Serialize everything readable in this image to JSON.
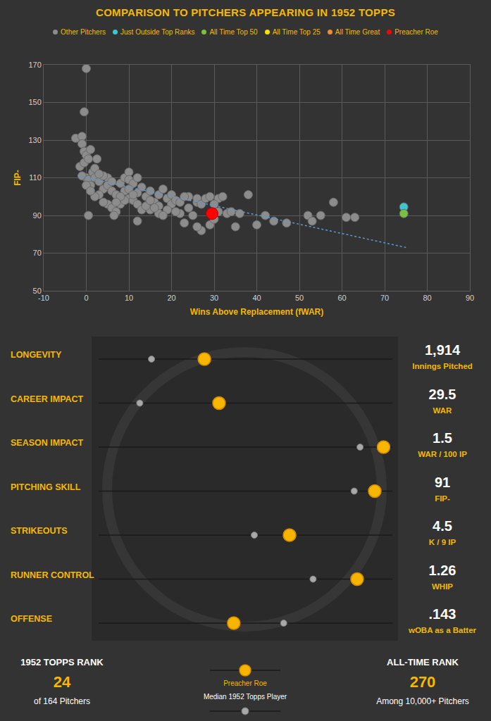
{
  "chart_data": {
    "type": "scatter",
    "title": "COMPARISON TO PITCHERS APPEARING IN 1952 TOPPS",
    "x_label": "Wins Above Replacement (fWAR)",
    "y_label": "FIP-",
    "xlim": [
      -10,
      90
    ],
    "ylim": [
      50,
      170
    ],
    "xticks": [
      -10,
      0,
      10,
      20,
      30,
      40,
      50,
      60,
      70,
      80,
      90
    ],
    "yticks": [
      50,
      70,
      90,
      110,
      130,
      150,
      170
    ],
    "grid": true,
    "legend": "top",
    "series": [
      {
        "name": "Other Pitchers",
        "color": "#8c8c8c",
        "marker": "circle",
        "x": [
          0,
          -0.5,
          -2.5,
          -1,
          -1,
          -0.5,
          0,
          -1.5,
          -0.5,
          0,
          -1,
          0.5,
          1,
          0,
          1.5,
          2,
          2.5,
          2,
          3,
          4,
          3,
          0.5,
          2,
          5,
          5,
          4,
          6,
          6,
          7,
          5,
          6,
          7,
          6.5,
          8,
          9,
          8,
          9,
          10,
          10,
          11,
          12,
          13,
          12,
          10,
          11,
          12,
          13,
          14,
          15,
          16,
          17,
          17,
          18,
          19,
          20,
          20,
          21,
          22,
          19,
          17,
          12,
          15,
          22,
          23,
          24,
          25,
          26,
          26,
          27,
          28,
          27,
          26,
          29,
          30,
          31,
          31,
          32,
          33,
          34,
          35,
          36,
          38,
          40,
          42,
          44,
          47,
          52,
          53,
          55,
          58,
          61,
          63,
          24,
          29,
          30,
          21,
          18,
          14,
          9,
          8,
          4,
          3,
          1,
          0.5,
          1,
          7,
          10,
          11,
          15,
          16,
          23
        ],
        "y": [
          168,
          145,
          131,
          132,
          128,
          124,
          122,
          116,
          118,
          110,
          111,
          109,
          106,
          106,
          113,
          115,
          120,
          110,
          108,
          104,
          101,
          90,
          100,
          110,
          106,
          111,
          108,
          103,
          101,
          96,
          94,
          92,
          90,
          96,
          103,
          107,
          110,
          113,
          109,
          107,
          110,
          105,
          102,
          99,
          98,
          96,
          93,
          100,
          103,
          97,
          101,
          95,
          104,
          99,
          101,
          96,
          98,
          97,
          93,
          91,
          87,
          93,
          91,
          86,
          94,
          90,
          97,
          99,
          96,
          99,
          82,
          84,
          85,
          88,
          99,
          92,
          100,
          91,
          92,
          84,
          91,
          101,
          85,
          90,
          87,
          86,
          90,
          87,
          90,
          97,
          89,
          89,
          100,
          100,
          96,
          92,
          90,
          95,
          98,
          100,
          97,
          112,
          125,
          120,
          103,
          97,
          104,
          101,
          98,
          94,
          100
        ]
      },
      {
        "type": "line",
        "line_style": "dot",
        "color": "#5b9bd5",
        "x": [
          -2,
          75
        ],
        "y": [
          111,
          73
        ]
      },
      {
        "name": "Just Outside Top Ranks",
        "color": "#3cc8d0",
        "marker": "circle",
        "x": [
          74.5
        ],
        "y": [
          94.5
        ]
      },
      {
        "name": "All Time Top 50",
        "color": "#7ac143",
        "marker": "circle",
        "x": [
          74.5
        ],
        "y": [
          91
        ]
      },
      {
        "name": "All Time Top 25",
        "color": "#f5e000",
        "marker": "circle",
        "x": [],
        "y": []
      },
      {
        "name": "All Time Great",
        "color": "#f08c30",
        "marker": "circle",
        "x": [],
        "y": []
      },
      {
        "name": "Preacher Roe",
        "color": "#ff0000",
        "marker": "circle",
        "x": [
          29.5
        ],
        "y": [
          91
        ]
      }
    ]
  },
  "metrics": {
    "track_range": [
      0,
      100
    ],
    "player_color": "#f7b500",
    "median_color": "#a8a8a8",
    "rows": [
      {
        "label": "LONGEVITY",
        "value": "1,914",
        "unit": "Innings Pitched",
        "player_position": 36,
        "median_position": 18
      },
      {
        "label": "CAREER IMPACT",
        "value": "29.5",
        "unit": "WAR",
        "player_position": 41,
        "median_position": 14
      },
      {
        "label": "SEASON IMPACT",
        "value": "1.5",
        "unit": "WAR / 100 IP",
        "player_position": 97,
        "median_position": 89
      },
      {
        "label": "PITCHING SKILL",
        "value": "91",
        "unit": "FIP-",
        "player_position": 94,
        "median_position": 87
      },
      {
        "label": "STRIKEOUTS",
        "value": "4.5",
        "unit": "K / 9 IP",
        "player_position": 65,
        "median_position": 53
      },
      {
        "label": "RUNNER CONTROL",
        "value": "1.26",
        "unit": "WHIP",
        "player_position": 88,
        "median_position": 73
      },
      {
        "label": "OFFENSE",
        "value": ".143",
        "unit": "wOBA as a Batter",
        "player_position": 46,
        "median_position": 63
      }
    ]
  },
  "footer": {
    "left": {
      "title": "1952 TOPPS RANK",
      "rank": "24",
      "note": "of 164 Pitchers"
    },
    "key": {
      "player": "Preacher Roe",
      "median": "Median 1952 Topps Player"
    },
    "right": {
      "title": "ALL-TIME RANK",
      "rank": "270",
      "note": "Among 10,000+ Pitchers"
    }
  }
}
